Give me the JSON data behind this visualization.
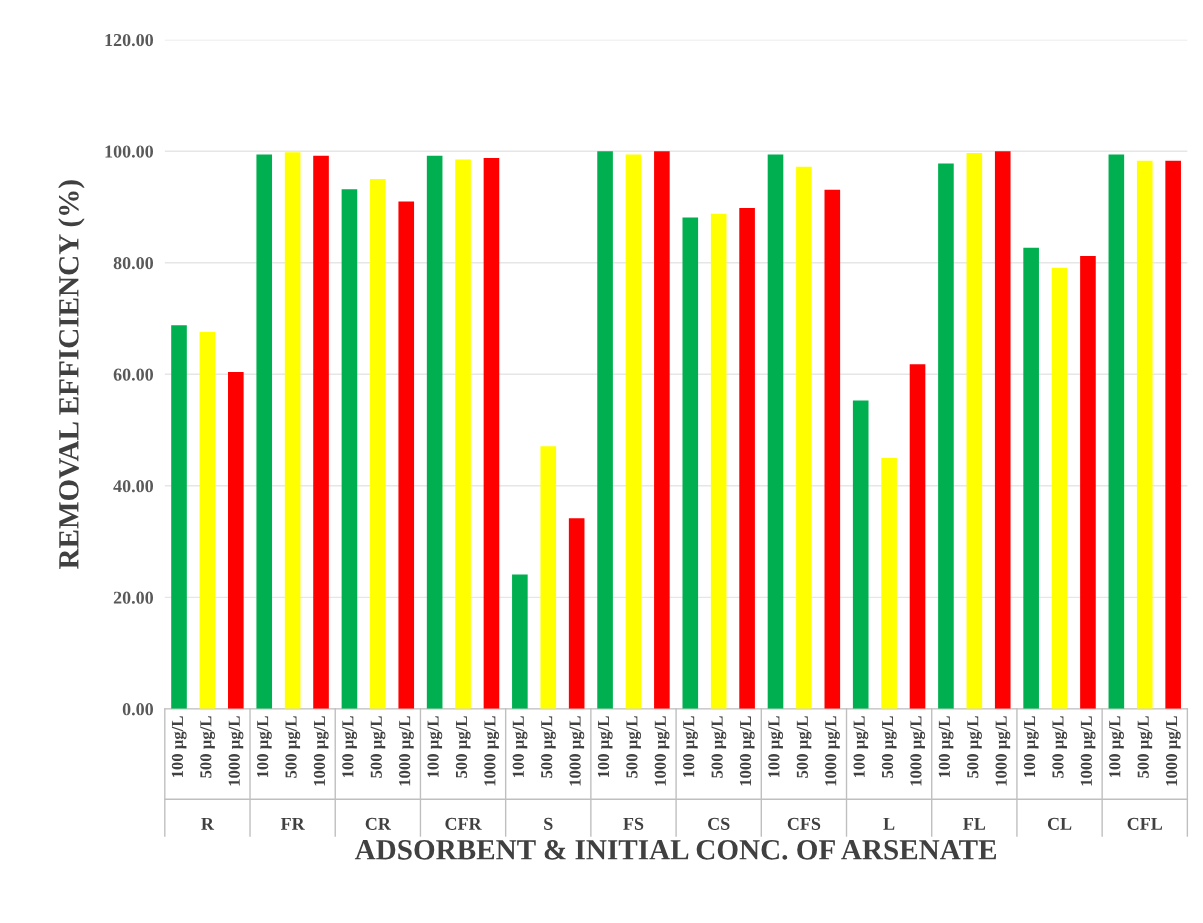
{
  "chart_data": {
    "type": "bar",
    "xlabel": "ADSORBENT & INITIAL CONC. OF ARSENATE",
    "ylabel": "REMOVAL EFFICIENCY (%)",
    "categories": [
      "R",
      "FR",
      "CR",
      "CFR",
      "S",
      "FS",
      "CS",
      "CFS",
      "L",
      "FL",
      "CL",
      "CFL"
    ],
    "series": [
      {
        "name": "100 µg/L",
        "color": "#00b050",
        "values": [
          68.8,
          99.4,
          93.2,
          99.2,
          24.1,
          100,
          88.1,
          99.4,
          55.3,
          97.8,
          82.7,
          99.4
        ]
      },
      {
        "name": "500 µg/L",
        "color": "#ffff00",
        "values": [
          67.6,
          99.8,
          95.0,
          98.5,
          47.1,
          99.4,
          88.8,
          97.2,
          45.0,
          99.7,
          79.1,
          98.3
        ]
      },
      {
        "name": "1000 µg/L",
        "color": "#ff0000",
        "values": [
          60.4,
          99.2,
          91.0,
          98.8,
          34.2,
          100,
          89.8,
          93.1,
          61.8,
          100,
          81.2,
          98.3
        ]
      }
    ],
    "ylim": [
      0,
      120
    ],
    "yticks": [
      {
        "value": 0,
        "label": "0.00"
      },
      {
        "value": 20,
        "label": "20.00"
      },
      {
        "value": 40,
        "label": "40.00"
      },
      {
        "value": 60,
        "label": "60.00"
      },
      {
        "value": 80,
        "label": "80.00"
      },
      {
        "value": 100,
        "label": "100.00"
      },
      {
        "value": 120,
        "label": "120.00"
      }
    ],
    "grid": "y",
    "legend": false
  }
}
